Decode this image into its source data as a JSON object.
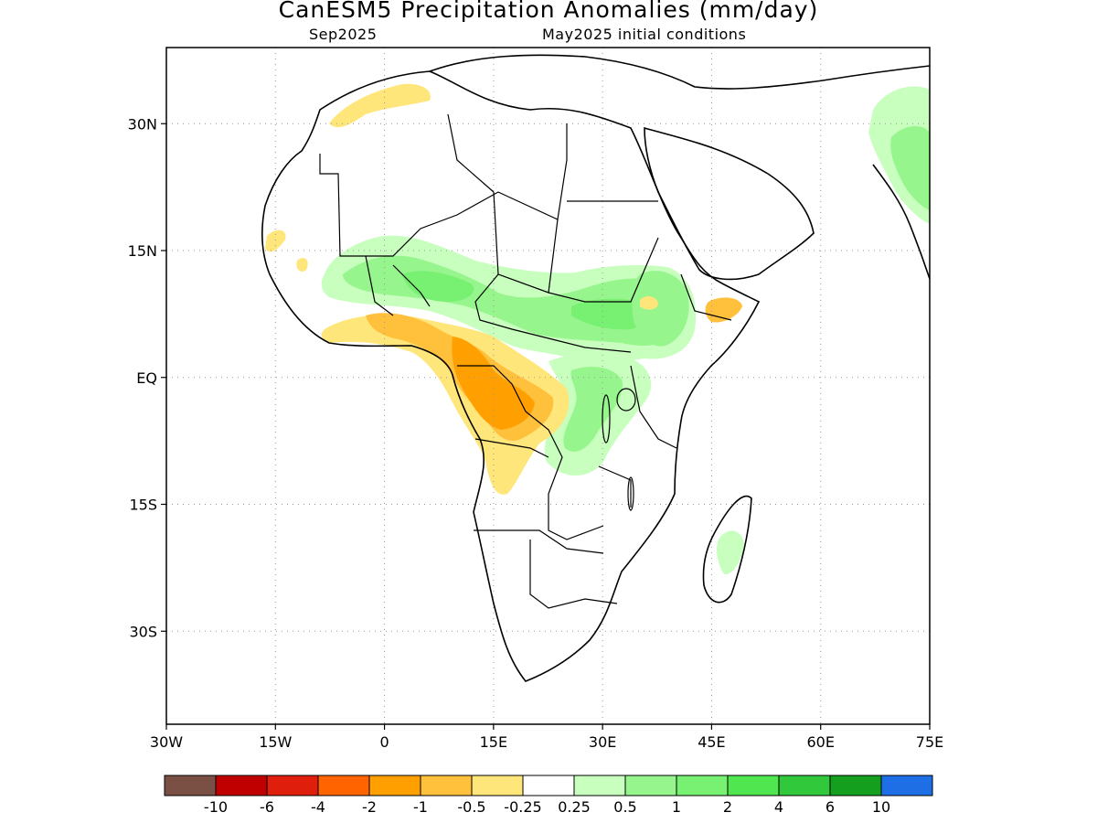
{
  "title": "CanESM5 Precipitation Anomalies (mm/day)",
  "subtitle_left": "Sep2025",
  "subtitle_right": "May2025 initial conditions",
  "map": {
    "lon_range": [
      -30,
      75
    ],
    "lat_range": [
      -41,
      39
    ],
    "lon_ticks": [
      {
        "value": -30,
        "label": "30W"
      },
      {
        "value": -15,
        "label": "15W"
      },
      {
        "value": 0,
        "label": "0"
      },
      {
        "value": 15,
        "label": "15E"
      },
      {
        "value": 30,
        "label": "30E"
      },
      {
        "value": 45,
        "label": "45E"
      },
      {
        "value": 60,
        "label": "60E"
      },
      {
        "value": 75,
        "label": "75E"
      }
    ],
    "lat_ticks": [
      {
        "value": 30,
        "label": "30N"
      },
      {
        "value": 15,
        "label": "15N"
      },
      {
        "value": 0,
        "label": "EQ"
      },
      {
        "value": -15,
        "label": "15S"
      },
      {
        "value": -30,
        "label": "30S"
      }
    ],
    "grid": "dotted"
  },
  "colorbar": {
    "colors": [
      "#7a5044",
      "#c00000",
      "#e01e0c",
      "#ff6400",
      "#ffa000",
      "#ffc03c",
      "#ffe67a",
      "#ffffff",
      "#c8ffbe",
      "#96f58c",
      "#78f072",
      "#50e650",
      "#32c83c",
      "#14a01e",
      "#1e6ee6"
    ],
    "labels": [
      "-10",
      "-6",
      "-4",
      "-2",
      "-1",
      "-0.5",
      "-0.25",
      "0.25",
      "0.5",
      "1",
      "2",
      "4",
      "6",
      "10"
    ]
  },
  "anomaly_regions": [
    {
      "name": "Sahel wet band",
      "category": "0.5 to 1"
    },
    {
      "name": "Central Africa dry area",
      "category": "-1 to -2"
    },
    {
      "name": "Great Lakes wet area",
      "category": "0.5 to 1"
    },
    {
      "name": "Ethiopian Highlands wet area",
      "category": "0.5 to 1"
    },
    {
      "name": "Western India wet area",
      "category": "0.5 to 1"
    },
    {
      "name": "Madagascar wet area",
      "category": "0.25 to 0.5"
    },
    {
      "name": "Morocco dry area",
      "category": "-0.25 to -0.5"
    }
  ]
}
